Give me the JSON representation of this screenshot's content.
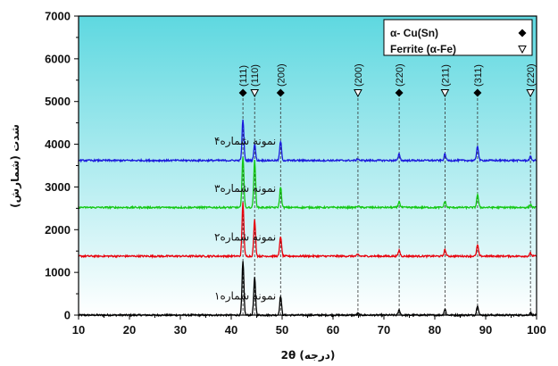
{
  "chart_data": {
    "type": "line",
    "xlabel": "2θ (درجه)",
    "ylabel": "شدت (شمارش)",
    "xlim": [
      10,
      100
    ],
    "ylim": [
      0,
      7000
    ],
    "xticks": [
      10,
      20,
      30,
      40,
      50,
      60,
      70,
      80,
      90,
      100
    ],
    "yticks": [
      0,
      1000,
      2000,
      3000,
      4000,
      5000,
      6000,
      7000
    ],
    "background_gradient": [
      "#ffffff",
      "#5ed8e0"
    ],
    "legend": {
      "placement": "top-right",
      "entries": [
        {
          "label": "α- Cu(Sn)",
          "marker": "filled-diamond"
        },
        {
          "label": "Ferrite (α-Fe)",
          "marker": "open-triangle-down"
        }
      ]
    },
    "reference_lines": [
      {
        "x": 42.3,
        "label": "(111)",
        "marker": "filled-diamond"
      },
      {
        "x": 44.6,
        "label": "(110)",
        "marker": "open-triangle-down"
      },
      {
        "x": 49.7,
        "label": "(200)",
        "marker": "filled-diamond"
      },
      {
        "x": 64.9,
        "label": "(200)",
        "marker": "open-triangle-down"
      },
      {
        "x": 73.0,
        "label": "(220)",
        "marker": "filled-diamond"
      },
      {
        "x": 82.0,
        "label": "(211)",
        "marker": "open-triangle-down"
      },
      {
        "x": 88.4,
        "label": "(311)",
        "marker": "filled-diamond"
      },
      {
        "x": 98.8,
        "label": "(220)",
        "marker": "open-triangle-down"
      }
    ],
    "series": [
      {
        "name": "نمونه شماره۱",
        "color": "#000000",
        "baseline": 0,
        "peaks": [
          [
            42.3,
            1250
          ],
          [
            44.6,
            880
          ],
          [
            49.7,
            450
          ],
          [
            64.9,
            40
          ],
          [
            73.0,
            120
          ],
          [
            82.0,
            140
          ],
          [
            88.4,
            230
          ],
          [
            98.8,
            60
          ]
        ]
      },
      {
        "name": "نمونه شماره۲",
        "color": "#e8000b",
        "baseline": 1380,
        "peaks": [
          [
            42.3,
            1250
          ],
          [
            44.6,
            850
          ],
          [
            49.7,
            470
          ],
          [
            64.9,
            40
          ],
          [
            73.0,
            140
          ],
          [
            82.0,
            150
          ],
          [
            88.4,
            260
          ],
          [
            98.8,
            70
          ]
        ]
      },
      {
        "name": "نمونه شماره۳",
        "color": "#14c814",
        "baseline": 2520,
        "peaks": [
          [
            42.3,
            1200
          ],
          [
            44.6,
            1100
          ],
          [
            49.7,
            480
          ],
          [
            64.9,
            40
          ],
          [
            73.0,
            140
          ],
          [
            82.0,
            140
          ],
          [
            88.4,
            300
          ],
          [
            98.8,
            70
          ]
        ]
      },
      {
        "name": "نمونه شماره۴",
        "color": "#1a1adc",
        "baseline": 3620,
        "peaks": [
          [
            42.3,
            950
          ],
          [
            44.6,
            380
          ],
          [
            49.7,
            450
          ],
          [
            64.9,
            40
          ],
          [
            73.0,
            150
          ],
          [
            82.0,
            150
          ],
          [
            88.4,
            350
          ],
          [
            98.8,
            90
          ]
        ]
      }
    ]
  }
}
